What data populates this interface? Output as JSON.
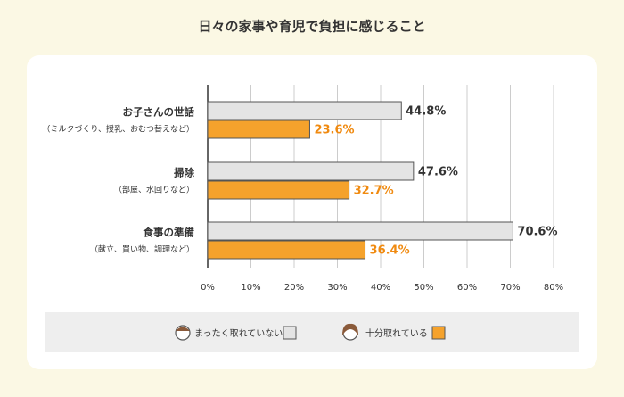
{
  "chart_data": {
    "type": "hbar",
    "title": "日々の家事や育児で負担に感じること",
    "categories": [
      "お子さんの世話",
      "掃除",
      "食事の準備"
    ],
    "category_notes": [
      "（ミルクづくり、授乳、おむつ替えなど）",
      "（部屋、水回りなど）",
      "（献立、買い物、調理など）"
    ],
    "series": [
      {
        "name": "まったく取れていない",
        "color": "#e4e4e4",
        "label_color": "#333333",
        "values": [
          44.8,
          47.6,
          70.6
        ],
        "value_labels": [
          "44.8%",
          "47.6%",
          "70.6%"
        ]
      },
      {
        "name": "十分取れている",
        "color": "#f5a22c",
        "label_color": "#f08a10",
        "values": [
          23.6,
          32.7,
          36.4
        ],
        "value_labels": [
          "23.6%",
          "32.7%",
          "36.4%"
        ]
      }
    ],
    "xlim": [
      0,
      80
    ],
    "xticks": [
      {
        "value": 0,
        "label": "0%"
      },
      {
        "value": 10,
        "label": "10%"
      },
      {
        "value": 20,
        "label": "20%"
      },
      {
        "value": 30,
        "label": "30%"
      },
      {
        "value": 40,
        "label": "40%"
      },
      {
        "value": 50,
        "label": "50%"
      },
      {
        "value": 60,
        "label": "60%"
      },
      {
        "value": 70,
        "label": "70%"
      },
      {
        "value": 80,
        "label": "80%"
      }
    ],
    "grid": true
  }
}
